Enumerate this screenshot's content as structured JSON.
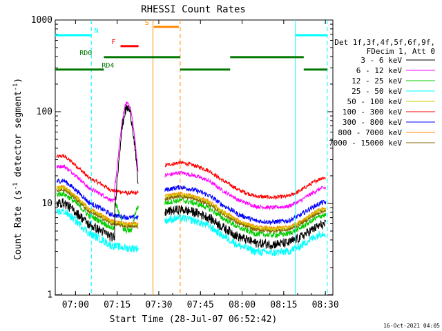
{
  "chart_data": {
    "type": "line",
    "title": "RHESSI Count Rates",
    "xlabel": "Start Time (28-Jul-07 06:52:42)",
    "ylabel_main": "Count Rate (s",
    "ylabel_sup1": "-1",
    "ylabel_mid": " detector segment",
    "ylabel_sup2": "-1",
    "ylabel_end": ")",
    "timestamp": "16-Oct-2021 04:05",
    "y_scale": "log",
    "xlim_minutes": [
      0,
      100
    ],
    "ylim": [
      1,
      1000
    ],
    "x_ticks": [
      {
        "label": "07:00",
        "t": 7.3
      },
      {
        "label": "07:15",
        "t": 22.3
      },
      {
        "label": "07:30",
        "t": 37.3
      },
      {
        "label": "07:45",
        "t": 52.3
      },
      {
        "label": "08:00",
        "t": 67.3
      },
      {
        "label": "08:15",
        "t": 82.3
      },
      {
        "label": "08:30",
        "t": 97.3
      }
    ],
    "y_ticks": [
      {
        "label": "1",
        "v": 1
      },
      {
        "label": "10",
        "v": 10
      },
      {
        "label": "100",
        "v": 100
      },
      {
        "label": "1000",
        "v": 1000
      }
    ],
    "legend_header": [
      "Det 1f,3f,4f,5f,6f,9f,",
      "FDecim 1, Att 0"
    ],
    "series": [
      {
        "name": "3 - 6 keV",
        "color": "#000000",
        "peak": 110,
        "offset": 0.62,
        "noise": 0.12
      },
      {
        "name": "6 - 12 keV",
        "color": "#ff00ff",
        "peak": 125,
        "offset": 1.55,
        "noise": 0.05
      },
      {
        "name": "12 - 25 keV",
        "color": "#00cc00",
        "peak": 3,
        "offset": 0.78,
        "noise": 0.07
      },
      {
        "name": "25 - 50 keV",
        "color": "#00ffff",
        "peak": 0,
        "offset": 0.5,
        "noise": 0.1
      },
      {
        "name": "50 - 100 keV",
        "color": "#cccc00",
        "peak": 0,
        "offset": 0.9,
        "noise": 0.05
      },
      {
        "name": "100 - 300 keV",
        "color": "#ff0000",
        "peak": 0,
        "offset": 2.0,
        "noise": 0.05
      },
      {
        "name": "300 - 800 keV",
        "color": "#0000ff",
        "peak": 0,
        "offset": 1.08,
        "noise": 0.06
      },
      {
        "name": "800 - 7000 keV",
        "color": "#ff8800",
        "peak": 0,
        "offset": 0.92,
        "noise": 0.05
      },
      {
        "name": "7000 - 15000 keV",
        "color": "#886600",
        "peak": 0,
        "offset": 0.86,
        "noise": 0.04
      }
    ],
    "background_profile": [
      [
        0,
        16
      ],
      [
        3,
        16.5
      ],
      [
        8,
        12.5
      ],
      [
        12,
        9.5
      ],
      [
        16,
        8.3
      ],
      [
        20,
        7
      ],
      [
        26,
        6.5
      ],
      [
        30,
        6.5
      ]
    ],
    "background_profile_2": [
      [
        39.5,
        13
      ],
      [
        45,
        14
      ],
      [
        50,
        13
      ],
      [
        55,
        11.5
      ],
      [
        60,
        9
      ],
      [
        66,
        7
      ],
      [
        72,
        6
      ],
      [
        78,
        5.8
      ],
      [
        84,
        6
      ],
      [
        88,
        6.8
      ],
      [
        93,
        8.5
      ],
      [
        96,
        9.5
      ]
    ],
    "gap_minutes": [
      30,
      39.5
    ],
    "flags": [
      {
        "label": "N",
        "color": "#00ffff",
        "level": 0.945,
        "segments": [
          [
            0,
            12.8
          ],
          [
            86.5,
            98
          ]
        ],
        "label_t": 14.8
      },
      {
        "label": "RD0",
        "color": "#007700",
        "level": 0.865,
        "segments": [
          [
            17.5,
            45
          ],
          [
            63,
            89.5
          ]
        ],
        "label_t": 11
      },
      {
        "label": "RD4",
        "color": "#007700",
        "level": 0.82,
        "segments": [
          [
            0,
            17.5
          ],
          [
            45,
            63
          ],
          [
            89.5,
            98
          ]
        ],
        "label_t": 19
      },
      {
        "label": "F",
        "color": "#ff0000",
        "level": 0.905,
        "segments": [
          [
            23.5,
            30
          ]
        ],
        "label_t": 21
      },
      {
        "label": "S",
        "color": "#ff8800",
        "level": 0.975,
        "segments": [
          [
            35.5,
            44.5
          ]
        ],
        "label_t": 33
      }
    ],
    "vlines": [
      {
        "t": 13,
        "color": "#00ffff",
        "dashed": true
      },
      {
        "t": 86.5,
        "color": "#00ffff",
        "dashed": false
      },
      {
        "t": 98,
        "color": "#00ffff",
        "dashed": true
      },
      {
        "t": 35.2,
        "color": "#ff8800",
        "dashed": false
      },
      {
        "t": 45,
        "color": "#ff8800",
        "dashed": true
      }
    ],
    "flare": {
      "t_peak": 26,
      "width": 2.6,
      "start": 21.5,
      "end": 33.5
    }
  }
}
